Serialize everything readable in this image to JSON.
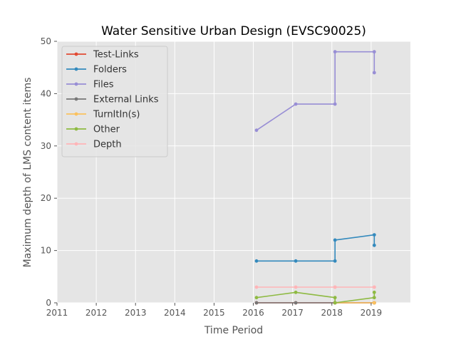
{
  "chart_data": {
    "type": "line",
    "title": "Water Sensitive Urban Design (EVSC90025)",
    "xlabel": "Time Period",
    "ylabel": "Maximum depth of LMS content items",
    "xlim": [
      2011,
      2020
    ],
    "ylim": [
      0,
      50
    ],
    "x_ticks": [
      "2011",
      "2012",
      "2013",
      "2014",
      "2015",
      "2016",
      "2017",
      "2018",
      "2019"
    ],
    "y_ticks": [
      "0",
      "10",
      "20",
      "30",
      "40",
      "50"
    ],
    "grid": true,
    "legend_position": "top-left",
    "series": [
      {
        "name": "Test-Links",
        "color": "#E24A33",
        "points": [
          [
            2016.08,
            0
          ],
          [
            2017.08,
            0
          ],
          [
            2018.08,
            0
          ],
          [
            2018.08,
            0
          ],
          [
            2019.08,
            0
          ],
          [
            2019.08,
            0
          ]
        ]
      },
      {
        "name": "Folders",
        "color": "#348ABD",
        "points": [
          [
            2016.08,
            8
          ],
          [
            2017.08,
            8
          ],
          [
            2018.08,
            8
          ],
          [
            2018.08,
            12
          ],
          [
            2019.08,
            13
          ],
          [
            2019.08,
            11
          ]
        ]
      },
      {
        "name": "Files",
        "color": "#988ED5",
        "points": [
          [
            2016.08,
            33
          ],
          [
            2017.08,
            38
          ],
          [
            2018.08,
            38
          ],
          [
            2018.08,
            48
          ],
          [
            2019.08,
            48
          ],
          [
            2019.08,
            44
          ]
        ]
      },
      {
        "name": "External Links",
        "color": "#777777",
        "points": [
          [
            2016.08,
            0
          ],
          [
            2017.08,
            0
          ],
          [
            2018.08,
            0
          ],
          [
            2018.08,
            0
          ],
          [
            2019.08,
            0
          ],
          [
            2019.08,
            0
          ]
        ]
      },
      {
        "name": "TurnItIn(s)",
        "color": "#FBC15E",
        "points": [
          [
            2018.08,
            0
          ],
          [
            2019.08,
            0
          ],
          [
            2019.08,
            0
          ]
        ]
      },
      {
        "name": "Other",
        "color": "#8EBA42",
        "points": [
          [
            2016.08,
            1
          ],
          [
            2017.08,
            2
          ],
          [
            2018.08,
            1
          ],
          [
            2018.08,
            0
          ],
          [
            2019.08,
            1
          ],
          [
            2019.08,
            2
          ]
        ]
      },
      {
        "name": "Depth",
        "color": "#FFB5B8",
        "points": [
          [
            2016.08,
            3
          ],
          [
            2017.08,
            3
          ],
          [
            2018.08,
            3
          ],
          [
            2018.08,
            3
          ],
          [
            2019.08,
            3
          ],
          [
            2019.08,
            3
          ]
        ]
      }
    ]
  }
}
